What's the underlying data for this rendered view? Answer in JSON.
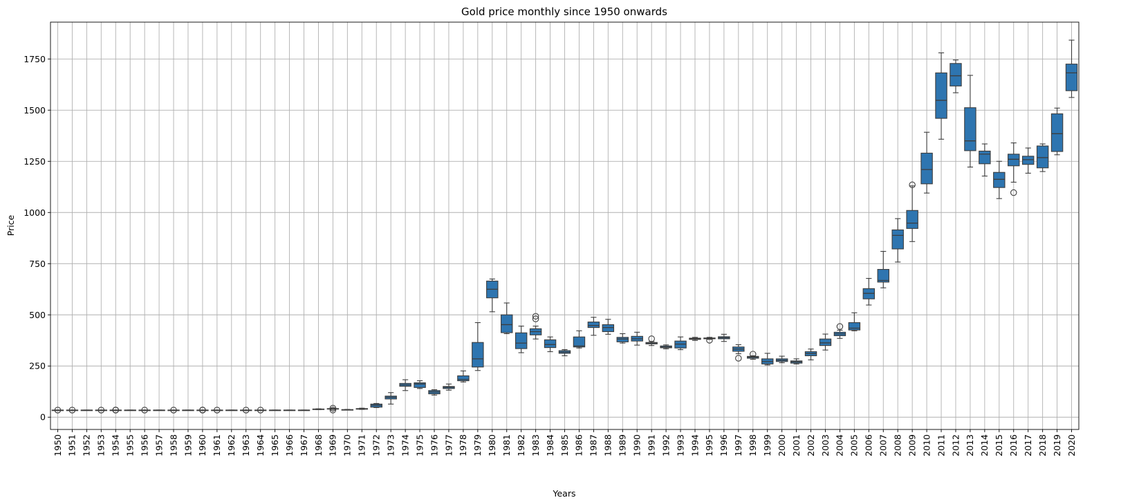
{
  "chart_data": {
    "type": "box",
    "title": "Gold price monthly since 1950 onwards",
    "xlabel": "Years",
    "ylabel": "Price",
    "ylim": [
      -60,
      1930
    ],
    "yticks": [
      0,
      250,
      500,
      750,
      1000,
      1250,
      1500,
      1750
    ],
    "grid": true,
    "box_color": "#2e75b0",
    "line_color": "#3d3d3d",
    "grid_color": "#b0b0b0",
    "boxes": [
      {
        "year": "1950",
        "whislo": 34.7,
        "q1": 34.7,
        "med": 34.7,
        "q3": 34.7,
        "whishi": 34.7,
        "fliers": [
          34.7
        ]
      },
      {
        "year": "1951",
        "whislo": 34.7,
        "q1": 34.7,
        "med": 34.7,
        "q3": 34.7,
        "whishi": 34.7,
        "fliers": [
          34.7
        ]
      },
      {
        "year": "1952",
        "whislo": 34.7,
        "q1": 34.7,
        "med": 34.7,
        "q3": 34.7,
        "whishi": 34.7,
        "fliers": []
      },
      {
        "year": "1953",
        "whislo": 34.7,
        "q1": 34.7,
        "med": 34.7,
        "q3": 34.7,
        "whishi": 34.7,
        "fliers": [
          34.7
        ]
      },
      {
        "year": "1954",
        "whislo": 34.7,
        "q1": 34.7,
        "med": 34.7,
        "q3": 34.7,
        "whishi": 34.7,
        "fliers": [
          34.7,
          34.9
        ]
      },
      {
        "year": "1955",
        "whislo": 34.7,
        "q1": 34.7,
        "med": 34.7,
        "q3": 34.7,
        "whishi": 34.7,
        "fliers": []
      },
      {
        "year": "1956",
        "whislo": 34.7,
        "q1": 34.7,
        "med": 34.7,
        "q3": 34.7,
        "whishi": 34.7,
        "fliers": [
          34.7
        ]
      },
      {
        "year": "1957",
        "whislo": 34.7,
        "q1": 34.7,
        "med": 34.7,
        "q3": 34.7,
        "whishi": 34.7,
        "fliers": []
      },
      {
        "year": "1958",
        "whislo": 34.7,
        "q1": 34.7,
        "med": 34.7,
        "q3": 34.7,
        "whishi": 34.7,
        "fliers": [
          34.7
        ]
      },
      {
        "year": "1959",
        "whislo": 34.7,
        "q1": 34.7,
        "med": 34.7,
        "q3": 34.7,
        "whishi": 34.7,
        "fliers": []
      },
      {
        "year": "1960",
        "whislo": 34.7,
        "q1": 34.7,
        "med": 34.7,
        "q3": 34.7,
        "whishi": 34.7,
        "fliers": [
          34.7,
          35.2
        ]
      },
      {
        "year": "1961",
        "whislo": 34.7,
        "q1": 34.7,
        "med": 34.7,
        "q3": 34.7,
        "whishi": 34.7,
        "fliers": [
          34.7
        ]
      },
      {
        "year": "1962",
        "whislo": 34.7,
        "q1": 34.7,
        "med": 34.7,
        "q3": 34.7,
        "whishi": 34.7,
        "fliers": []
      },
      {
        "year": "1963",
        "whislo": 34.7,
        "q1": 34.7,
        "med": 34.7,
        "q3": 34.7,
        "whishi": 34.7,
        "fliers": [
          34.7
        ]
      },
      {
        "year": "1964",
        "whislo": 34.7,
        "q1": 34.7,
        "med": 34.7,
        "q3": 34.7,
        "whishi": 34.7,
        "fliers": [
          34.7
        ]
      },
      {
        "year": "1965",
        "whislo": 34.7,
        "q1": 34.7,
        "med": 34.7,
        "q3": 34.7,
        "whishi": 34.7,
        "fliers": []
      },
      {
        "year": "1966",
        "whislo": 34.7,
        "q1": 34.7,
        "med": 34.7,
        "q3": 34.7,
        "whishi": 34.7,
        "fliers": []
      },
      {
        "year": "1967",
        "whislo": 34.7,
        "q1": 34.7,
        "med": 34.7,
        "q3": 34.7,
        "whishi": 34.7,
        "fliers": []
      },
      {
        "year": "1968",
        "whislo": 37,
        "q1": 38,
        "med": 39,
        "q3": 40,
        "whishi": 41,
        "fliers": []
      },
      {
        "year": "1969",
        "whislo": 38,
        "q1": 40,
        "med": 41,
        "q3": 42,
        "whishi": 43,
        "fliers": [
          35,
          44
        ]
      },
      {
        "year": "1970",
        "whislo": 35,
        "q1": 35.5,
        "med": 36,
        "q3": 37,
        "whishi": 38,
        "fliers": []
      },
      {
        "year": "1971",
        "whislo": 38,
        "q1": 39,
        "med": 41,
        "q3": 42,
        "whishi": 44,
        "fliers": []
      },
      {
        "year": "1972",
        "whislo": 47,
        "q1": 49,
        "med": 58,
        "q3": 64,
        "whishi": 67,
        "fliers": []
      },
      {
        "year": "1973",
        "whislo": 64,
        "q1": 89,
        "med": 97,
        "q3": 103,
        "whishi": 120,
        "fliers": []
      },
      {
        "year": "1974",
        "whislo": 130,
        "q1": 151,
        "med": 158,
        "q3": 165,
        "whishi": 183,
        "fliers": []
      },
      {
        "year": "1975",
        "whislo": 140,
        "q1": 145,
        "med": 162,
        "q3": 168,
        "whishi": 178,
        "fliers": []
      },
      {
        "year": "1976",
        "whislo": 108,
        "q1": 114,
        "med": 123,
        "q3": 130,
        "whishi": 134,
        "fliers": []
      },
      {
        "year": "1977",
        "whislo": 132,
        "q1": 140,
        "med": 146,
        "q3": 150,
        "whishi": 162,
        "fliers": []
      },
      {
        "year": "1978",
        "whislo": 172,
        "q1": 178,
        "med": 184,
        "q3": 202,
        "whishi": 226,
        "fliers": []
      },
      {
        "year": "1979",
        "whislo": 228,
        "q1": 245,
        "med": 285,
        "q3": 365,
        "whishi": 462,
        "fliers": []
      },
      {
        "year": "1980",
        "whislo": 515,
        "q1": 583,
        "med": 625,
        "q3": 665,
        "whishi": 675,
        "fliers": []
      },
      {
        "year": "1981",
        "whislo": 408,
        "q1": 413,
        "med": 452,
        "q3": 500,
        "whishi": 558,
        "fliers": []
      },
      {
        "year": "1982",
        "whislo": 315,
        "q1": 335,
        "med": 362,
        "q3": 412,
        "whishi": 445,
        "fliers": []
      },
      {
        "year": "1983",
        "whislo": 382,
        "q1": 402,
        "med": 418,
        "q3": 432,
        "whishi": 445,
        "fliers": [
          480,
          493
        ]
      },
      {
        "year": "1984",
        "whislo": 320,
        "q1": 340,
        "med": 355,
        "q3": 378,
        "whishi": 392,
        "fliers": []
      },
      {
        "year": "1985",
        "whislo": 300,
        "q1": 312,
        "med": 318,
        "q3": 325,
        "whishi": 330,
        "fliers": []
      },
      {
        "year": "1986",
        "whislo": 338,
        "q1": 343,
        "med": 348,
        "q3": 392,
        "whishi": 422,
        "fliers": []
      },
      {
        "year": "1987",
        "whislo": 400,
        "q1": 438,
        "med": 448,
        "q3": 465,
        "whishi": 488,
        "fliers": []
      },
      {
        "year": "1988",
        "whislo": 405,
        "q1": 418,
        "med": 438,
        "q3": 452,
        "whishi": 478,
        "fliers": []
      },
      {
        "year": "1989",
        "whislo": 362,
        "q1": 368,
        "med": 382,
        "q3": 390,
        "whishi": 408,
        "fliers": []
      },
      {
        "year": "1990",
        "whislo": 352,
        "q1": 372,
        "med": 383,
        "q3": 395,
        "whishi": 415,
        "fliers": []
      },
      {
        "year": "1991",
        "whislo": 350,
        "q1": 358,
        "med": 362,
        "q3": 365,
        "whishi": 370,
        "fliers": [
          383
        ]
      },
      {
        "year": "1992",
        "whislo": 334,
        "q1": 339,
        "med": 343,
        "q3": 348,
        "whishi": 353,
        "fliers": []
      },
      {
        "year": "1993",
        "whislo": 330,
        "q1": 338,
        "med": 357,
        "q3": 372,
        "whishi": 392,
        "fliers": []
      },
      {
        "year": "1994",
        "whislo": 375,
        "q1": 380,
        "med": 383,
        "q3": 386,
        "whishi": 390,
        "fliers": []
      },
      {
        "year": "1995",
        "whislo": 380,
        "q1": 383,
        "med": 385,
        "q3": 387,
        "whishi": 390,
        "fliers": [
          376
        ]
      },
      {
        "year": "1996",
        "whislo": 370,
        "q1": 383,
        "med": 388,
        "q3": 393,
        "whishi": 405,
        "fliers": []
      },
      {
        "year": "1997",
        "whislo": 310,
        "q1": 322,
        "med": 333,
        "q3": 343,
        "whishi": 354,
        "fliers": [
          288
        ]
      },
      {
        "year": "1998",
        "whislo": 283,
        "q1": 288,
        "med": 293,
        "q3": 297,
        "whishi": 300,
        "fliers": [
          308
        ]
      },
      {
        "year": "1999",
        "whislo": 255,
        "q1": 260,
        "med": 272,
        "q3": 285,
        "whishi": 312,
        "fliers": []
      },
      {
        "year": "2000",
        "whislo": 266,
        "q1": 272,
        "med": 278,
        "q3": 285,
        "whishi": 298,
        "fliers": []
      },
      {
        "year": "2001",
        "whislo": 260,
        "q1": 264,
        "med": 270,
        "q3": 275,
        "whishi": 285,
        "fliers": []
      },
      {
        "year": "2002",
        "whislo": 280,
        "q1": 300,
        "med": 311,
        "q3": 320,
        "whishi": 333,
        "fliers": []
      },
      {
        "year": "2003",
        "whislo": 328,
        "q1": 350,
        "med": 363,
        "q3": 382,
        "whishi": 406,
        "fliers": []
      },
      {
        "year": "2004",
        "whislo": 385,
        "q1": 398,
        "med": 407,
        "q3": 415,
        "whishi": 425,
        "fliers": [
          443
        ]
      },
      {
        "year": "2005",
        "whislo": 422,
        "q1": 426,
        "med": 435,
        "q3": 462,
        "whishi": 510,
        "fliers": []
      },
      {
        "year": "2006",
        "whislo": 548,
        "q1": 578,
        "med": 605,
        "q3": 628,
        "whishi": 678,
        "fliers": []
      },
      {
        "year": "2007",
        "whislo": 632,
        "q1": 660,
        "med": 668,
        "q3": 722,
        "whishi": 810,
        "fliers": []
      },
      {
        "year": "2008",
        "whislo": 758,
        "q1": 822,
        "med": 888,
        "q3": 915,
        "whishi": 970,
        "fliers": []
      },
      {
        "year": "2009",
        "whislo": 858,
        "q1": 922,
        "med": 948,
        "q3": 1010,
        "whishi": 1130,
        "fliers": [
          1135
        ]
      },
      {
        "year": "2010",
        "whislo": 1095,
        "q1": 1140,
        "med": 1210,
        "q3": 1290,
        "whishi": 1392,
        "fliers": []
      },
      {
        "year": "2011",
        "whislo": 1358,
        "q1": 1460,
        "med": 1548,
        "q3": 1682,
        "whishi": 1780,
        "fliers": []
      },
      {
        "year": "2012",
        "whislo": 1585,
        "q1": 1618,
        "med": 1668,
        "q3": 1728,
        "whishi": 1745,
        "fliers": []
      },
      {
        "year": "2013",
        "whislo": 1222,
        "q1": 1302,
        "med": 1350,
        "q3": 1512,
        "whishi": 1670,
        "fliers": []
      },
      {
        "year": "2014",
        "whislo": 1178,
        "q1": 1238,
        "med": 1285,
        "q3": 1300,
        "whishi": 1335,
        "fliers": []
      },
      {
        "year": "2015",
        "whislo": 1068,
        "q1": 1122,
        "med": 1162,
        "q3": 1196,
        "whishi": 1250,
        "fliers": []
      },
      {
        "year": "2016",
        "whislo": 1148,
        "q1": 1228,
        "med": 1260,
        "q3": 1285,
        "whishi": 1340,
        "fliers": [
          1097
        ]
      },
      {
        "year": "2017",
        "whislo": 1192,
        "q1": 1235,
        "med": 1258,
        "q3": 1275,
        "whishi": 1315,
        "fliers": []
      },
      {
        "year": "2018",
        "whislo": 1200,
        "q1": 1218,
        "med": 1268,
        "q3": 1325,
        "whishi": 1335,
        "fliers": []
      },
      {
        "year": "2019",
        "whislo": 1282,
        "q1": 1298,
        "med": 1385,
        "q3": 1482,
        "whishi": 1510,
        "fliers": []
      },
      {
        "year": "2020",
        "whislo": 1562,
        "q1": 1595,
        "med": 1682,
        "q3": 1725,
        "whishi": 1842,
        "fliers": []
      }
    ]
  }
}
